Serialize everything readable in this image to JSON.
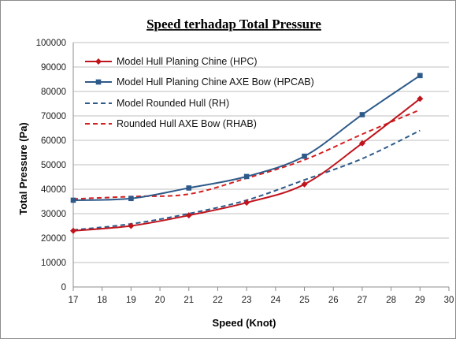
{
  "chart_data": {
    "type": "line",
    "title": "Speed terhadap Total Pressure",
    "xlabel": "Speed (Knot)",
    "ylabel": "Total Pressure (Pa)",
    "xlim": [
      17,
      30
    ],
    "ylim": [
      0,
      100000
    ],
    "xticks": [
      "17",
      "18",
      "19",
      "20",
      "21",
      "22",
      "23",
      "24",
      "25",
      "26",
      "27",
      "28",
      "29",
      "30"
    ],
    "yticks": [
      "0",
      "10000",
      "20000",
      "30000",
      "40000",
      "50000",
      "60000",
      "70000",
      "80000",
      "90000",
      "100000"
    ],
    "grid": "horizontal",
    "legend_position": "top-left",
    "x": [
      17,
      19,
      21,
      23,
      25,
      27,
      29
    ],
    "series": [
      {
        "name": "Model Hull Planing Chine (HPC)",
        "values": [
          23000,
          25000,
          29300,
          34500,
          42000,
          58800,
          77000
        ],
        "color": "#c0141c",
        "line_style": "solid",
        "marker": "diamond"
      },
      {
        "name": "Model Hull Planing Chine AXE Bow (HPCAB)",
        "values": [
          35500,
          36200,
          40500,
          45200,
          53500,
          70500,
          86500
        ],
        "color": "#2e5a8a",
        "line_style": "solid",
        "marker": "square"
      },
      {
        "name": "Model Rounded Hull (RH)",
        "values": [
          23300,
          25800,
          30000,
          35500,
          43800,
          52500,
          64000
        ],
        "color": "#2e5a8a",
        "line_style": "dashed",
        "marker": "none"
      },
      {
        "name": "Rounded Hull AXE Bow (RHAB)",
        "values": [
          36000,
          37000,
          38000,
          44500,
          52000,
          62500,
          72500
        ],
        "color": "#d42020",
        "line_style": "dashed",
        "marker": "none"
      }
    ]
  }
}
